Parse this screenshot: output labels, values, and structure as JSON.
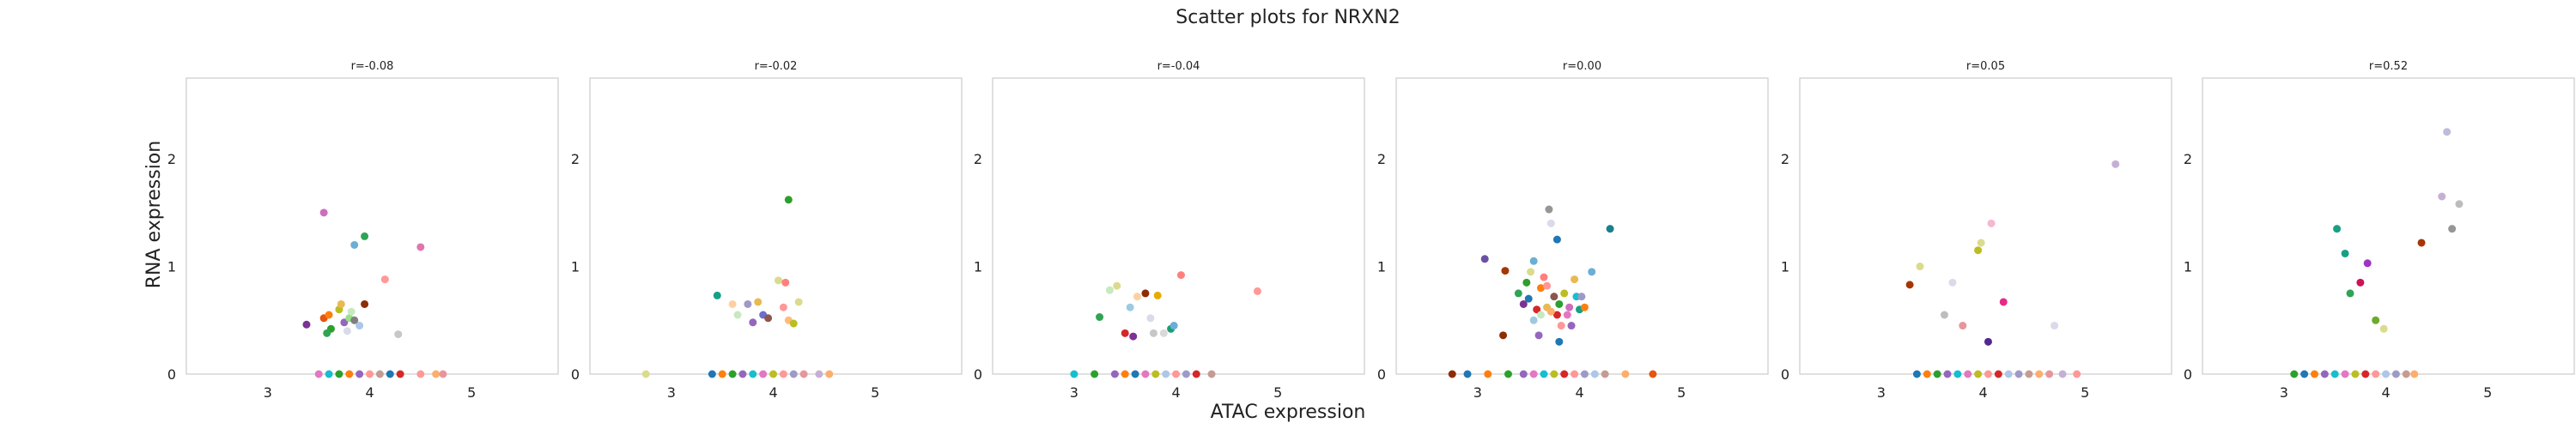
{
  "figure": {
    "title": "Scatter plots for NRXN2",
    "xlabel": "ATAC expression",
    "ylabel": "RNA expression"
  },
  "chart_data": [
    {
      "type": "scatter",
      "title": "r=-0.08",
      "xlim": [
        2.2,
        5.85
      ],
      "ylim": [
        0,
        2.75
      ],
      "xticks": [
        3,
        4,
        5
      ],
      "yticks": [
        0,
        1,
        2
      ],
      "grid": false,
      "points": [
        [
          3.38,
          0.46,
          "#7b3294"
        ],
        [
          3.55,
          0.52,
          "#e6550d"
        ],
        [
          3.6,
          0.55,
          "#ff7f0e"
        ],
        [
          3.62,
          0.42,
          "#2ca02c"
        ],
        [
          3.58,
          0.38,
          "#31a354"
        ],
        [
          3.7,
          0.6,
          "#bcbd22"
        ],
        [
          3.75,
          0.48,
          "#9467bd"
        ],
        [
          3.8,
          0.52,
          "#98df8a"
        ],
        [
          3.82,
          0.58,
          "#c7e9c0"
        ],
        [
          3.85,
          0.5,
          "#7f7f7f"
        ],
        [
          3.9,
          0.45,
          "#aec7e8"
        ],
        [
          3.72,
          0.65,
          "#e7ba52"
        ],
        [
          3.95,
          0.65,
          "#8c2d04"
        ],
        [
          3.55,
          1.5,
          "#ce6dbd"
        ],
        [
          3.85,
          1.2,
          "#6baed6"
        ],
        [
          3.95,
          1.28,
          "#31a354"
        ],
        [
          4.15,
          0.88,
          "#ff9896"
        ],
        [
          4.5,
          1.18,
          "#de77ae"
        ],
        [
          4.28,
          0.37,
          "#c7c7c7"
        ],
        [
          3.78,
          0.4,
          "#dadaeb"
        ],
        [
          3.5,
          0.0,
          "#e377c2"
        ],
        [
          3.6,
          0.0,
          "#17becf"
        ],
        [
          3.7,
          0.0,
          "#2ca02c"
        ],
        [
          3.8,
          0.0,
          "#ff7f0e"
        ],
        [
          3.9,
          0.0,
          "#9467bd"
        ],
        [
          4.0,
          0.0,
          "#ff9896"
        ],
        [
          4.1,
          0.0,
          "#c49c94"
        ],
        [
          4.2,
          0.0,
          "#1f77b4"
        ],
        [
          4.3,
          0.0,
          "#d62728"
        ],
        [
          4.5,
          0.0,
          "#ff9896"
        ],
        [
          4.65,
          0.0,
          "#fdae6b"
        ],
        [
          4.72,
          0.0,
          "#e7969c"
        ]
      ]
    },
    {
      "type": "scatter",
      "title": "r=-0.02",
      "xlim": [
        2.2,
        5.85
      ],
      "ylim": [
        0,
        2.75
      ],
      "xticks": [
        3,
        4,
        5
      ],
      "yticks": [
        0,
        1,
        2
      ],
      "grid": false,
      "points": [
        [
          3.45,
          0.73,
          "#17a085"
        ],
        [
          3.65,
          0.55,
          "#c7e9c0"
        ],
        [
          3.75,
          0.65,
          "#9e9ac8"
        ],
        [
          3.85,
          0.67,
          "#e7ba52"
        ],
        [
          3.8,
          0.48,
          "#9467bd"
        ],
        [
          3.9,
          0.55,
          "#6b6ecf"
        ],
        [
          3.95,
          0.52,
          "#8c564b"
        ],
        [
          4.05,
          0.87,
          "#dbdb8d"
        ],
        [
          4.1,
          0.62,
          "#ff9896"
        ],
        [
          4.12,
          0.85,
          "#ff7f7f"
        ],
        [
          4.15,
          0.5,
          "#ffbb78"
        ],
        [
          4.2,
          0.47,
          "#bcbd22"
        ],
        [
          4.25,
          0.67,
          "#dbdb8d"
        ],
        [
          4.15,
          1.62,
          "#2ca02c"
        ],
        [
          3.6,
          0.65,
          "#fdd0a2"
        ],
        [
          2.75,
          0.0,
          "#dbdb8d"
        ],
        [
          3.4,
          0.0,
          "#1f77b4"
        ],
        [
          3.5,
          0.0,
          "#ff7f0e"
        ],
        [
          3.6,
          0.0,
          "#2ca02c"
        ],
        [
          3.7,
          0.0,
          "#9467bd"
        ],
        [
          3.8,
          0.0,
          "#17becf"
        ],
        [
          3.9,
          0.0,
          "#e377c2"
        ],
        [
          4.0,
          0.0,
          "#bcbd22"
        ],
        [
          4.1,
          0.0,
          "#ff9896"
        ],
        [
          4.2,
          0.0,
          "#9e9ac8"
        ],
        [
          4.3,
          0.0,
          "#e7969c"
        ],
        [
          4.45,
          0.0,
          "#c5b0d5"
        ],
        [
          4.55,
          0.0,
          "#fdae6b"
        ]
      ]
    },
    {
      "type": "scatter",
      "title": "r=-0.04",
      "xlim": [
        2.2,
        5.85
      ],
      "ylim": [
        0,
        2.75
      ],
      "xticks": [
        3,
        4,
        5
      ],
      "yticks": [
        0,
        1,
        2
      ],
      "grid": false,
      "points": [
        [
          3.25,
          0.53,
          "#31a354"
        ],
        [
          3.35,
          0.78,
          "#c7e9c0"
        ],
        [
          3.42,
          0.82,
          "#dbdb8d"
        ],
        [
          3.5,
          0.38,
          "#d62728"
        ],
        [
          3.55,
          0.62,
          "#9ecae1"
        ],
        [
          3.58,
          0.35,
          "#7b3294"
        ],
        [
          3.62,
          0.72,
          "#fdd0a2"
        ],
        [
          3.7,
          0.75,
          "#8c2d04"
        ],
        [
          3.75,
          0.52,
          "#dadaeb"
        ],
        [
          3.78,
          0.38,
          "#c7c7c7"
        ],
        [
          3.82,
          0.73,
          "#e6ab02"
        ],
        [
          3.88,
          0.38,
          "#d9d9d9"
        ],
        [
          3.95,
          0.42,
          "#1b9e77"
        ],
        [
          3.98,
          0.45,
          "#6baed6"
        ],
        [
          4.05,
          0.92,
          "#ff7f7f"
        ],
        [
          4.8,
          0.77,
          "#ff9896"
        ],
        [
          3.0,
          0.0,
          "#17becf"
        ],
        [
          3.2,
          0.0,
          "#2ca02c"
        ],
        [
          3.4,
          0.0,
          "#9467bd"
        ],
        [
          3.5,
          0.0,
          "#ff7f0e"
        ],
        [
          3.6,
          0.0,
          "#1f77b4"
        ],
        [
          3.7,
          0.0,
          "#e377c2"
        ],
        [
          3.8,
          0.0,
          "#bcbd22"
        ],
        [
          3.9,
          0.0,
          "#aec7e8"
        ],
        [
          4.0,
          0.0,
          "#ff9896"
        ],
        [
          4.1,
          0.0,
          "#9e9ac8"
        ],
        [
          4.2,
          0.0,
          "#d62728"
        ],
        [
          4.35,
          0.0,
          "#c49c94"
        ]
      ]
    },
    {
      "type": "scatter",
      "title": "r=0.00",
      "xlim": [
        2.2,
        5.85
      ],
      "ylim": [
        0,
        2.75
      ],
      "xticks": [
        3,
        4,
        5
      ],
      "yticks": [
        0,
        1,
        2
      ],
      "grid": false,
      "points": [
        [
          3.07,
          1.07,
          "#6a51a3"
        ],
        [
          3.25,
          0.36,
          "#8c2d04"
        ],
        [
          3.27,
          0.96,
          "#a63603"
        ],
        [
          3.4,
          0.75,
          "#31a354"
        ],
        [
          3.45,
          0.65,
          "#7b3294"
        ],
        [
          3.48,
          0.85,
          "#2ca02c"
        ],
        [
          3.5,
          0.7,
          "#1f77b4"
        ],
        [
          3.52,
          0.95,
          "#dbdb8d"
        ],
        [
          3.55,
          1.05,
          "#6baed6"
        ],
        [
          3.55,
          0.5,
          "#9ecae1"
        ],
        [
          3.58,
          0.6,
          "#d62728"
        ],
        [
          3.6,
          0.36,
          "#9467bd"
        ],
        [
          3.62,
          0.8,
          "#ff7f0e"
        ],
        [
          3.65,
          0.9,
          "#ff7f7f"
        ],
        [
          3.68,
          0.62,
          "#e7ba52"
        ],
        [
          3.7,
          1.53,
          "#969696"
        ],
        [
          3.72,
          1.4,
          "#dadaeb"
        ],
        [
          3.75,
          0.72,
          "#8c564b"
        ],
        [
          3.78,
          0.55,
          "#d62728"
        ],
        [
          3.78,
          1.25,
          "#1f77b4"
        ],
        [
          3.8,
          0.3,
          "#1f77b4"
        ],
        [
          3.8,
          0.65,
          "#2ca02c"
        ],
        [
          3.82,
          0.45,
          "#ff9896"
        ],
        [
          3.85,
          0.75,
          "#bcbd22"
        ],
        [
          3.88,
          0.55,
          "#e377c2"
        ],
        [
          3.9,
          0.62,
          "#ce6dbd"
        ],
        [
          3.92,
          0.45,
          "#9467bd"
        ],
        [
          3.95,
          0.88,
          "#e7ba52"
        ],
        [
          3.97,
          0.72,
          "#17becf"
        ],
        [
          4.0,
          0.6,
          "#17a085"
        ],
        [
          4.02,
          0.72,
          "#9e9ac8"
        ],
        [
          4.05,
          0.62,
          "#ff7f0e"
        ],
        [
          4.12,
          0.95,
          "#6baed6"
        ],
        [
          4.3,
          1.35,
          "#1b7f8c"
        ],
        [
          3.68,
          0.82,
          "#ff9896"
        ],
        [
          3.72,
          0.58,
          "#fdae6b"
        ],
        [
          3.62,
          0.55,
          "#c7e9c0"
        ],
        [
          2.75,
          0.0,
          "#8c2d04"
        ],
        [
          2.9,
          0.0,
          "#1f77b4"
        ],
        [
          3.1,
          0.0,
          "#ff7f0e"
        ],
        [
          3.3,
          0.0,
          "#2ca02c"
        ],
        [
          3.45,
          0.0,
          "#9467bd"
        ],
        [
          3.55,
          0.0,
          "#e377c2"
        ],
        [
          3.65,
          0.0,
          "#17becf"
        ],
        [
          3.75,
          0.0,
          "#bcbd22"
        ],
        [
          3.85,
          0.0,
          "#d62728"
        ],
        [
          3.95,
          0.0,
          "#ff9896"
        ],
        [
          4.05,
          0.0,
          "#9e9ac8"
        ],
        [
          4.15,
          0.0,
          "#aec7e8"
        ],
        [
          4.25,
          0.0,
          "#c49c94"
        ],
        [
          4.45,
          0.0,
          "#fdae6b"
        ],
        [
          4.72,
          0.0,
          "#e6550d"
        ]
      ]
    },
    {
      "type": "scatter",
      "title": "r=0.05",
      "xlim": [
        2.2,
        5.85
      ],
      "ylim": [
        0,
        2.75
      ],
      "xticks": [
        3,
        4,
        5
      ],
      "yticks": [
        0,
        1,
        2
      ],
      "grid": false,
      "points": [
        [
          3.28,
          0.83,
          "#a63603"
        ],
        [
          3.38,
          1.0,
          "#dbdb8d"
        ],
        [
          3.62,
          0.55,
          "#bdbdbd"
        ],
        [
          3.7,
          0.85,
          "#dadaeb"
        ],
        [
          3.8,
          0.45,
          "#e7969c"
        ],
        [
          3.95,
          1.15,
          "#bcbd22"
        ],
        [
          3.98,
          1.22,
          "#dbdb8d"
        ],
        [
          4.08,
          1.4,
          "#f7b6d2"
        ],
        [
          4.2,
          0.67,
          "#e7298a"
        ],
        [
          4.05,
          0.3,
          "#54278f"
        ],
        [
          4.7,
          0.45,
          "#dadaeb"
        ],
        [
          5.3,
          1.95,
          "#c5b0d5"
        ],
        [
          3.35,
          0.0,
          "#1f77b4"
        ],
        [
          3.45,
          0.0,
          "#ff7f0e"
        ],
        [
          3.55,
          0.0,
          "#2ca02c"
        ],
        [
          3.65,
          0.0,
          "#9467bd"
        ],
        [
          3.75,
          0.0,
          "#17becf"
        ],
        [
          3.85,
          0.0,
          "#e377c2"
        ],
        [
          3.95,
          0.0,
          "#bcbd22"
        ],
        [
          4.05,
          0.0,
          "#ff9896"
        ],
        [
          4.15,
          0.0,
          "#d62728"
        ],
        [
          4.25,
          0.0,
          "#aec7e8"
        ],
        [
          4.35,
          0.0,
          "#9e9ac8"
        ],
        [
          4.45,
          0.0,
          "#c49c94"
        ],
        [
          4.55,
          0.0,
          "#fdae6b"
        ],
        [
          4.65,
          0.0,
          "#e7969c"
        ],
        [
          4.78,
          0.0,
          "#c5b0d5"
        ],
        [
          4.92,
          0.0,
          "#ff9896"
        ]
      ]
    },
    {
      "type": "scatter",
      "title": "r=0.52",
      "xlim": [
        2.2,
        5.85
      ],
      "ylim": [
        0,
        2.75
      ],
      "xticks": [
        3,
        4,
        5
      ],
      "yticks": [
        0,
        1,
        2
      ],
      "grid": false,
      "points": [
        [
          3.52,
          1.35,
          "#17a085"
        ],
        [
          3.6,
          1.12,
          "#17a085"
        ],
        [
          3.65,
          0.75,
          "#31a354"
        ],
        [
          3.75,
          0.85,
          "#ce1256"
        ],
        [
          3.82,
          1.03,
          "#9e34c2"
        ],
        [
          3.9,
          0.5,
          "#6baa2c"
        ],
        [
          3.98,
          0.42,
          "#dbdb8d"
        ],
        [
          4.35,
          1.22,
          "#a63603"
        ],
        [
          4.55,
          1.65,
          "#c5b0d5"
        ],
        [
          4.6,
          2.25,
          "#bcbddc"
        ],
        [
          4.65,
          1.35,
          "#969696"
        ],
        [
          4.72,
          1.58,
          "#bdbdbd"
        ],
        [
          3.1,
          0.0,
          "#2ca02c"
        ],
        [
          3.2,
          0.0,
          "#1f77b4"
        ],
        [
          3.3,
          0.0,
          "#ff7f0e"
        ],
        [
          3.4,
          0.0,
          "#9467bd"
        ],
        [
          3.5,
          0.0,
          "#17becf"
        ],
        [
          3.6,
          0.0,
          "#e377c2"
        ],
        [
          3.7,
          0.0,
          "#bcbd22"
        ],
        [
          3.8,
          0.0,
          "#d62728"
        ],
        [
          3.9,
          0.0,
          "#ff9896"
        ],
        [
          4.0,
          0.0,
          "#aec7e8"
        ],
        [
          4.1,
          0.0,
          "#9e9ac8"
        ],
        [
          4.2,
          0.0,
          "#c49c94"
        ],
        [
          4.28,
          0.0,
          "#fdae6b"
        ]
      ]
    }
  ]
}
